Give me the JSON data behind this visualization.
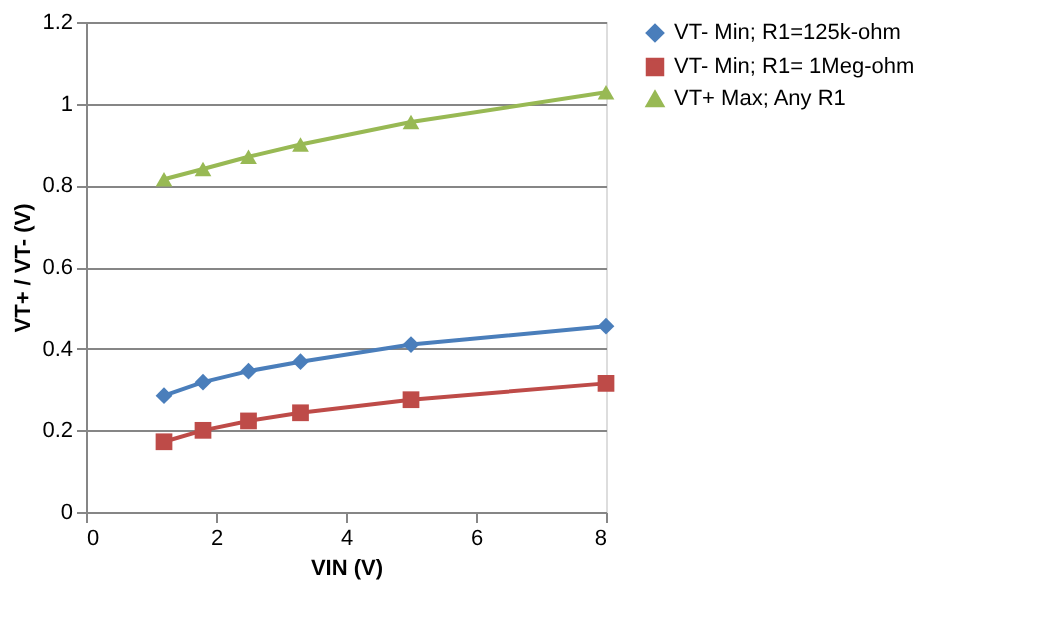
{
  "chart_data": {
    "type": "line",
    "xlabel": "VIN (V)",
    "ylabel": "VT+ / VT- (V)",
    "x": [
      1.2,
      1.8,
      2.5,
      3.3,
      5,
      8
    ],
    "series": [
      {
        "name": "VT- Min; R1=125k-ohm",
        "color": "#4a7ebb",
        "marker": "diamond",
        "values": [
          0.285,
          0.318,
          0.345,
          0.368,
          0.41,
          0.455
        ]
      },
      {
        "name": "VT- Min; R1= 1Meg-ohm",
        "color": "#be4b48",
        "marker": "square",
        "values": [
          0.172,
          0.2,
          0.223,
          0.243,
          0.275,
          0.315
        ]
      },
      {
        "name": "VT+ Max; Any R1",
        "color": "#98b954",
        "marker": "triangle",
        "values": [
          0.815,
          0.84,
          0.87,
          0.9,
          0.955,
          1.028
        ]
      }
    ],
    "xlim": [
      0,
      8
    ],
    "xticks": [
      0,
      2,
      4,
      6,
      8
    ],
    "ylim": [
      0,
      1.2
    ],
    "yticks": [
      0,
      0.2,
      0.4,
      0.6,
      0.8,
      1,
      1.2
    ],
    "grid": "y",
    "legend": "right",
    "line_style": "solid"
  }
}
